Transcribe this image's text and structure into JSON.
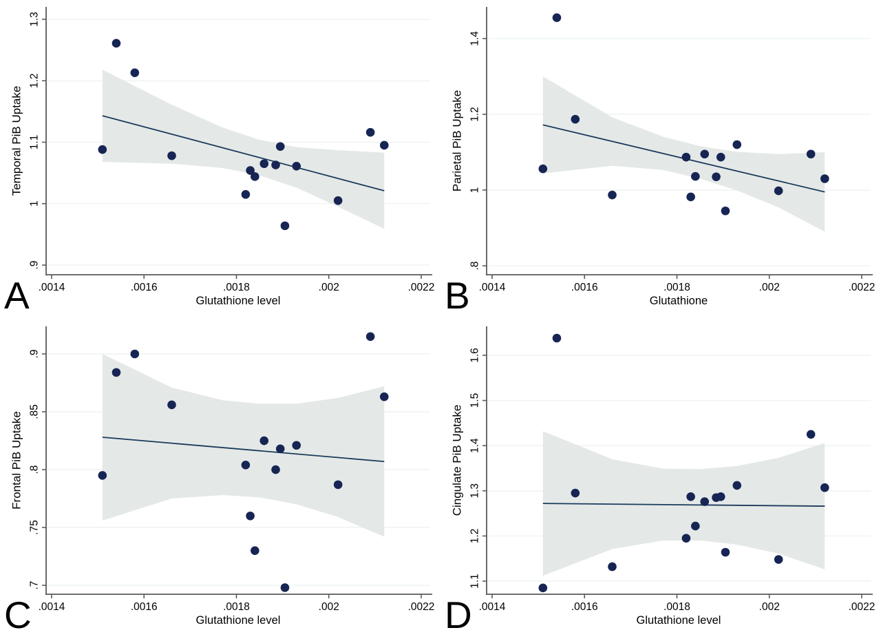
{
  "figure": {
    "description": "Four scatter plots of regional PiB uptake versus glutathione level with linear fit and 95% CI band",
    "panel_letters": [
      "A",
      "B",
      "C",
      "D"
    ]
  },
  "colors": {
    "marker": "#172554",
    "fit_line": "#1b3a5c",
    "ci_band": "#e4e9e7",
    "gridline": "#eff4f4",
    "axis": "#5a5a5a",
    "text": "#000000",
    "background": "#ffffff"
  },
  "chart_data": [
    {
      "type": "scatter",
      "panel_label": "A",
      "xlabel": "Glutathione level",
      "ylabel": "Temporal PiB Uptake",
      "x_ticks": [
        ".0014",
        ".0016",
        ".0018",
        ".002",
        ".0022"
      ],
      "x_tick_values": [
        0.0014,
        0.0016,
        0.0018,
        0.002,
        0.0022
      ],
      "y_ticks": [
        ".9",
        "1",
        "1.1",
        "1.2",
        "1.3"
      ],
      "y_tick_values": [
        0.9,
        1.0,
        1.1,
        1.2,
        1.3
      ],
      "xlim": [
        0.0013881,
        0.0022194
      ],
      "ylim": [
        0.8843,
        1.3202
      ],
      "grid": true,
      "legend": "none",
      "points": [
        {
          "x": 0.00151,
          "y": 1.088
        },
        {
          "x": 0.00154,
          "y": 1.261
        },
        {
          "x": 0.00158,
          "y": 1.213
        },
        {
          "x": 0.00166,
          "y": 1.078
        },
        {
          "x": 0.00182,
          "y": 1.015
        },
        {
          "x": 0.00183,
          "y": 1.054
        },
        {
          "x": 0.00184,
          "y": 1.044
        },
        {
          "x": 0.00186,
          "y": 1.065
        },
        {
          "x": 0.001885,
          "y": 1.063
        },
        {
          "x": 0.001895,
          "y": 1.093
        },
        {
          "x": 0.001905,
          "y": 0.964
        },
        {
          "x": 0.00193,
          "y": 1.061
        },
        {
          "x": 0.00202,
          "y": 1.005
        },
        {
          "x": 0.00209,
          "y": 1.116
        },
        {
          "x": 0.00212,
          "y": 1.095
        }
      ],
      "fit_line": [
        {
          "x": 0.00151,
          "y": 1.143
        },
        {
          "x": 0.00212,
          "y": 1.021
        }
      ],
      "ci_band": [
        {
          "x": 0.00151,
          "u": 1.218,
          "l": 1.068
        },
        {
          "x": 0.00166,
          "u": 1.161,
          "l": 1.065
        },
        {
          "x": 0.00177,
          "u": 1.124,
          "l": 1.058
        },
        {
          "x": 0.00185,
          "u": 1.104,
          "l": 1.046
        },
        {
          "x": 0.00193,
          "u": 1.092,
          "l": 1.026
        },
        {
          "x": 0.00202,
          "u": 1.087,
          "l": 0.995
        },
        {
          "x": 0.00212,
          "u": 1.083,
          "l": 0.959
        }
      ]
    },
    {
      "type": "scatter",
      "panel_label": "B",
      "xlabel": "Glutathione",
      "ylabel": "Parietal PiB Uptake",
      "x_ticks": [
        ".0014",
        ".0016",
        ".0018",
        ".002",
        ".0022"
      ],
      "x_tick_values": [
        0.0014,
        0.0016,
        0.0018,
        0.002,
        0.0022
      ],
      "y_ticks": [
        ".8",
        "1",
        "1.2",
        "1.4"
      ],
      "y_tick_values": [
        0.8,
        1.0,
        1.2,
        1.4
      ],
      "xlim": [
        0.0013881,
        0.0022194
      ],
      "ylim": [
        0.7764,
        1.4836
      ],
      "grid": true,
      "legend": "none",
      "points": [
        {
          "x": 0.00151,
          "y": 1.056
        },
        {
          "x": 0.00154,
          "y": 1.455
        },
        {
          "x": 0.00158,
          "y": 1.187
        },
        {
          "x": 0.00166,
          "y": 0.987
        },
        {
          "x": 0.00182,
          "y": 1.087
        },
        {
          "x": 0.00183,
          "y": 0.982
        },
        {
          "x": 0.00184,
          "y": 1.036
        },
        {
          "x": 0.00186,
          "y": 1.095
        },
        {
          "x": 0.001885,
          "y": 1.035
        },
        {
          "x": 0.001895,
          "y": 1.087
        },
        {
          "x": 0.001905,
          "y": 0.945
        },
        {
          "x": 0.00193,
          "y": 1.12
        },
        {
          "x": 0.00202,
          "y": 0.998
        },
        {
          "x": 0.00209,
          "y": 1.095
        },
        {
          "x": 0.00212,
          "y": 1.03
        }
      ],
      "fit_line": [
        {
          "x": 0.00151,
          "y": 1.172
        },
        {
          "x": 0.00212,
          "y": 0.995
        }
      ],
      "ci_band": [
        {
          "x": 0.00151,
          "u": 1.3,
          "l": 1.044
        },
        {
          "x": 0.00166,
          "u": 1.192,
          "l": 1.064
        },
        {
          "x": 0.00177,
          "u": 1.141,
          "l": 1.053
        },
        {
          "x": 0.00185,
          "u": 1.116,
          "l": 1.03
        },
        {
          "x": 0.00193,
          "u": 1.101,
          "l": 0.999
        },
        {
          "x": 0.00202,
          "u": 1.095,
          "l": 0.954
        },
        {
          "x": 0.00212,
          "u": 1.1,
          "l": 0.89
        }
      ]
    },
    {
      "type": "scatter",
      "panel_label": "C",
      "xlabel": "Glutathione level",
      "ylabel": "Frontal PiB Uptake",
      "x_ticks": [
        ".0014",
        ".0016",
        ".0018",
        ".002",
        ".0022"
      ],
      "x_tick_values": [
        0.0014,
        0.0016,
        0.0018,
        0.002,
        0.0022
      ],
      "y_ticks": [
        ".7",
        ".75",
        ".8",
        ".85",
        ".9"
      ],
      "y_tick_values": [
        0.7,
        0.75,
        0.8,
        0.85,
        0.9
      ],
      "xlim": [
        0.0013881,
        0.0022194
      ],
      "ylim": [
        0.6923,
        0.9238
      ],
      "grid": true,
      "legend": "none",
      "points": [
        {
          "x": 0.00151,
          "y": 0.795
        },
        {
          "x": 0.00154,
          "y": 0.884
        },
        {
          "x": 0.00158,
          "y": 0.9
        },
        {
          "x": 0.00166,
          "y": 0.856
        },
        {
          "x": 0.00182,
          "y": 0.804
        },
        {
          "x": 0.00183,
          "y": 0.76
        },
        {
          "x": 0.00184,
          "y": 0.73
        },
        {
          "x": 0.00186,
          "y": 0.825
        },
        {
          "x": 0.001885,
          "y": 0.8
        },
        {
          "x": 0.001895,
          "y": 0.818
        },
        {
          "x": 0.001905,
          "y": 0.698
        },
        {
          "x": 0.00193,
          "y": 0.821
        },
        {
          "x": 0.00202,
          "y": 0.787
        },
        {
          "x": 0.00209,
          "y": 0.915
        },
        {
          "x": 0.00212,
          "y": 0.863
        }
      ],
      "fit_line": [
        {
          "x": 0.00151,
          "y": 0.828
        },
        {
          "x": 0.00212,
          "y": 0.807
        }
      ],
      "ci_band": [
        {
          "x": 0.00151,
          "u": 0.9,
          "l": 0.756
        },
        {
          "x": 0.00166,
          "u": 0.871,
          "l": 0.775
        },
        {
          "x": 0.00177,
          "u": 0.86,
          "l": 0.778
        },
        {
          "x": 0.00185,
          "u": 0.857,
          "l": 0.776
        },
        {
          "x": 0.00193,
          "u": 0.857,
          "l": 0.77
        },
        {
          "x": 0.00202,
          "u": 0.862,
          "l": 0.759
        },
        {
          "x": 0.00212,
          "u": 0.872,
          "l": 0.742
        }
      ]
    },
    {
      "type": "scatter",
      "panel_label": "D",
      "xlabel": "Glutathione level",
      "ylabel": "Cingulate PiB Uptake",
      "x_ticks": [
        ".0014",
        ".0016",
        ".0018",
        ".002",
        ".0022"
      ],
      "x_tick_values": [
        0.0014,
        0.0016,
        0.0018,
        0.002,
        0.0022
      ],
      "y_ticks": [
        "1.1",
        "1.2",
        "1.3",
        "1.4",
        "1.5",
        "1.6"
      ],
      "y_tick_values": [
        1.1,
        1.2,
        1.3,
        1.4,
        1.5,
        1.6
      ],
      "xlim": [
        0.0013881,
        0.0022194
      ],
      "ylim": [
        1.071,
        1.664
      ],
      "grid": true,
      "legend": "none",
      "points": [
        {
          "x": 0.00151,
          "y": 1.085
        },
        {
          "x": 0.00154,
          "y": 1.638
        },
        {
          "x": 0.00158,
          "y": 1.295
        },
        {
          "x": 0.00166,
          "y": 1.132
        },
        {
          "x": 0.00182,
          "y": 1.195
        },
        {
          "x": 0.00183,
          "y": 1.287
        },
        {
          "x": 0.00184,
          "y": 1.222
        },
        {
          "x": 0.00186,
          "y": 1.276
        },
        {
          "x": 0.001885,
          "y": 1.285
        },
        {
          "x": 0.001895,
          "y": 1.287
        },
        {
          "x": 0.001905,
          "y": 1.164
        },
        {
          "x": 0.00193,
          "y": 1.312
        },
        {
          "x": 0.00202,
          "y": 1.148
        },
        {
          "x": 0.00209,
          "y": 1.425
        },
        {
          "x": 0.00212,
          "y": 1.307
        }
      ],
      "fit_line": [
        {
          "x": 0.00151,
          "y": 1.272
        },
        {
          "x": 0.00212,
          "y": 1.266
        }
      ],
      "ci_band": [
        {
          "x": 0.00151,
          "u": 1.432,
          "l": 1.112
        },
        {
          "x": 0.00166,
          "u": 1.37,
          "l": 1.171
        },
        {
          "x": 0.00177,
          "u": 1.349,
          "l": 1.19
        },
        {
          "x": 0.00185,
          "u": 1.348,
          "l": 1.19
        },
        {
          "x": 0.00193,
          "u": 1.355,
          "l": 1.181
        },
        {
          "x": 0.00202,
          "u": 1.373,
          "l": 1.161
        },
        {
          "x": 0.00212,
          "u": 1.406,
          "l": 1.126
        }
      ]
    }
  ]
}
